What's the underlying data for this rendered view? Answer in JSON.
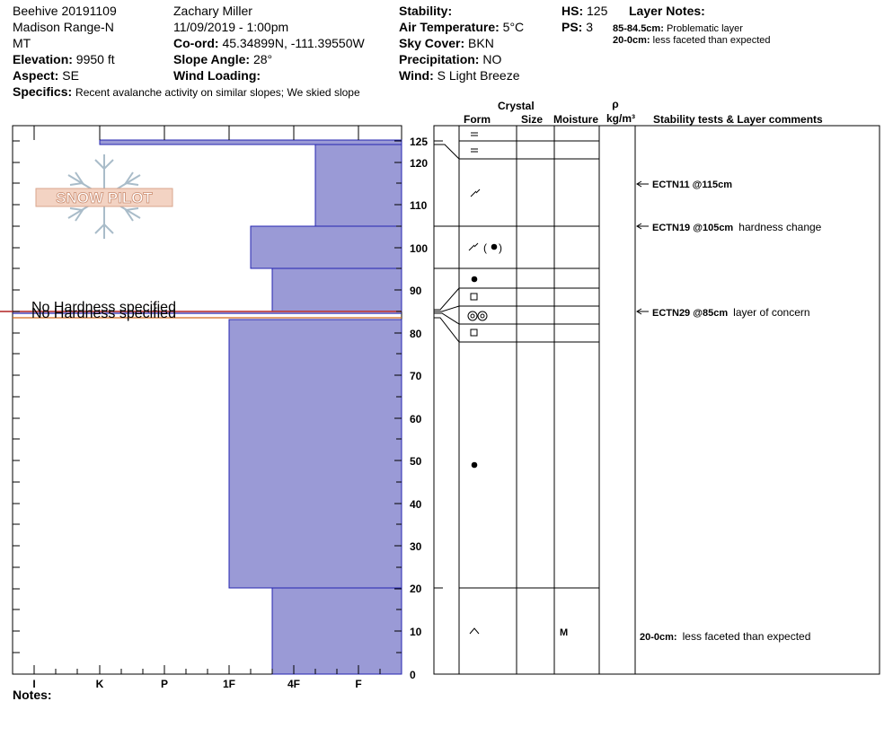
{
  "header": {
    "col1": {
      "site": "Beehive 20191109",
      "range": "Madison Range-N",
      "state": "MT",
      "elevation_label": "Elevation:",
      "elevation_value": "9950 ft",
      "aspect_label": "Aspect:",
      "aspect_value": "SE"
    },
    "col2": {
      "observer": "Zachary Miller",
      "datetime": "11/09/2019 - 1:00pm",
      "coord_label": "Co-ord:",
      "coord_value": "45.34899N, -111.39550W",
      "slope_label": "Slope Angle:",
      "slope_value": "28°",
      "wind_loading_label": "Wind Loading:"
    },
    "col3": {
      "stability_label": "Stability:",
      "air_temp_label": "Air Temperature:",
      "air_temp_value": "5°C",
      "sky_label": "Sky Cover:",
      "sky_value": "BKN",
      "precip_label": "Precipitation:",
      "precip_value": "NO",
      "wind_label": "Wind:",
      "wind_value": "S Light Breeze"
    },
    "col4": {
      "hs_label": "HS:",
      "hs_value": "125",
      "ps_label": "PS:",
      "ps_value": "3",
      "layer_notes_label": "Layer Notes:",
      "notes": [
        {
          "depth": "85-84.5cm:",
          "text": "Problematic layer"
        },
        {
          "depth": "20-0cm:",
          "text": "less faceted than expected"
        }
      ]
    },
    "specifics_label": "Specifics:",
    "specifics_value": "Recent avalanche activity on similar slopes; We skied slope"
  },
  "logo_text": "SNOW PILOT",
  "column_headers": {
    "crystal": "Crystal",
    "form": "Form",
    "size": "Size",
    "moisture": "Moisture",
    "rho": "ρ",
    "density_unit": "kg/m³",
    "stability": "Stability tests & Layer comments"
  },
  "hardness_axis": [
    "I",
    "K",
    "P",
    "1F",
    "4F",
    "F"
  ],
  "depth_ticks": [
    "125",
    "120",
    "110",
    "100",
    "90",
    "80",
    "70",
    "60",
    "50",
    "40",
    "30",
    "20",
    "10",
    "0"
  ],
  "no_hardness_text": "No Hardness specified",
  "moisture_mark": "M",
  "stability_tests": [
    {
      "test": "ECTN11 @115cm",
      "comment": ""
    },
    {
      "test": "ECTN19 @105cm",
      "comment": "hardness change"
    },
    {
      "test": "ECTN29 @85cm",
      "comment": "layer of concern"
    }
  ],
  "layer_comment": {
    "depth": "20-0cm:",
    "text": "less faceted than expected"
  },
  "notes_label": "Notes:",
  "colors": {
    "layer_fill": "#9a9ad6",
    "layer_stroke": "#2424b0",
    "marker_line": "#b22222"
  }
}
